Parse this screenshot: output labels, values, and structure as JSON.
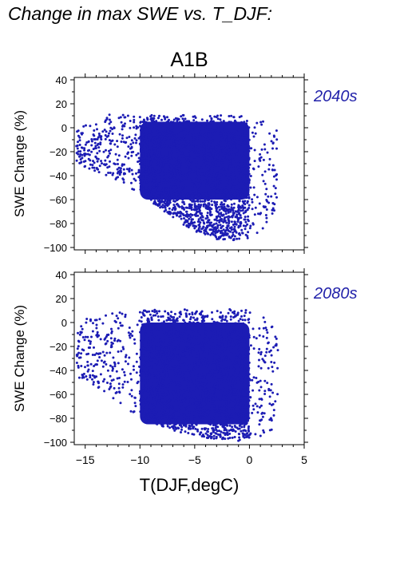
{
  "title": "Change in max SWE vs. T_DJF:",
  "scenario": "A1B",
  "x_axis_label": "T(DJF,degC)",
  "colors": {
    "points": "#1c1cb4",
    "axis": "#000000",
    "background": "#ffffff"
  },
  "chart_data": [
    {
      "type": "scatter",
      "panel_label": "2040s",
      "ylabel": "SWE Change (%)",
      "xlabel": "",
      "xlim": [
        -16,
        5
      ],
      "ylim": [
        -102,
        42
      ],
      "x_ticks": [
        -15,
        -10,
        -5,
        0,
        5
      ],
      "y_ticks": [
        40,
        20,
        0,
        -20,
        -40,
        -60,
        -80,
        -100
      ],
      "x_tick_labels_shown": false,
      "grid": false,
      "cloud": {
        "x_range": [
          -15.8,
          2.5
        ],
        "y_max": 11,
        "y_min": -97,
        "lower_edge": [
          [
            -15.8,
            -30
          ],
          [
            -13,
            -40
          ],
          [
            -10,
            -55
          ],
          [
            -7,
            -75
          ],
          [
            -5,
            -87
          ],
          [
            -3,
            -93
          ],
          [
            -1,
            -94
          ],
          [
            0,
            -92
          ],
          [
            1,
            -88
          ],
          [
            2,
            -80
          ],
          [
            2.5,
            -60
          ]
        ],
        "dense_core": {
          "x": [
            -10,
            0
          ],
          "y": [
            -60,
            5
          ]
        }
      }
    },
    {
      "type": "scatter",
      "panel_label": "2080s",
      "ylabel": "SWE Change (%)",
      "xlabel": "T(DJF,degC)",
      "xlim": [
        -16,
        5
      ],
      "ylim": [
        -102,
        42
      ],
      "x_ticks": [
        -15,
        -10,
        -5,
        0,
        5
      ],
      "y_ticks": [
        40,
        20,
        0,
        -20,
        -40,
        -60,
        -80,
        -100
      ],
      "x_tick_labels_shown": true,
      "grid": false,
      "cloud": {
        "x_range": [
          -15.8,
          2.6
        ],
        "y_max": 11,
        "y_min": -99,
        "lower_edge": [
          [
            -15.8,
            -45
          ],
          [
            -13,
            -60
          ],
          [
            -10,
            -80
          ],
          [
            -7,
            -90
          ],
          [
            -5,
            -95
          ],
          [
            -3,
            -98
          ],
          [
            -1,
            -99
          ],
          [
            0,
            -98
          ],
          [
            1,
            -96
          ],
          [
            2,
            -92
          ],
          [
            2.6,
            -80
          ]
        ],
        "dense_core": {
          "x": [
            -10,
            0
          ],
          "y": [
            -85,
            0
          ]
        }
      }
    }
  ]
}
